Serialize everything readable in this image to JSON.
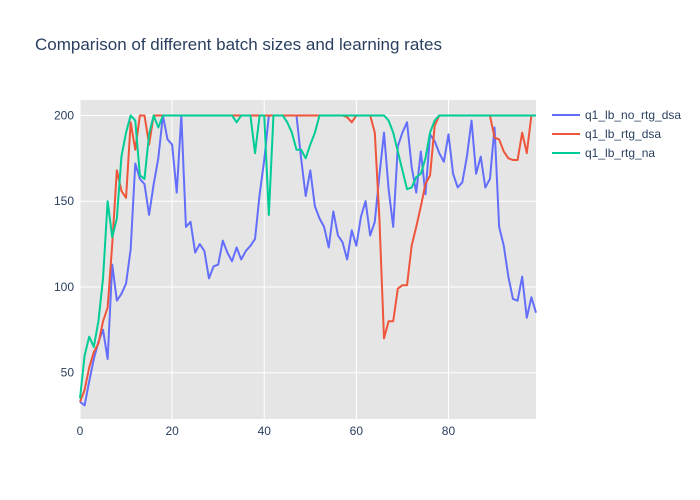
{
  "chart_data": {
    "type": "line",
    "title": "Comparison of different batch sizes and learning rates",
    "xlabel": "",
    "ylabel": "",
    "xlim": [
      0,
      99
    ],
    "ylim": [
      23,
      209
    ],
    "x_ticks": [
      0,
      20,
      40,
      60,
      80
    ],
    "y_ticks": [
      50,
      100,
      150,
      200
    ],
    "grid": true,
    "legend_position": "right",
    "plot_background": "#e5e5e5",
    "series": [
      {
        "name": "q1_lb_no_rtg_dsa",
        "color": "#636efa",
        "points": [
          [
            0,
            33
          ],
          [
            1,
            31
          ],
          [
            2,
            45
          ],
          [
            3,
            58
          ],
          [
            4,
            68
          ],
          [
            5,
            75
          ],
          [
            6,
            58
          ],
          [
            7,
            113
          ],
          [
            8,
            92
          ],
          [
            9,
            96
          ],
          [
            10,
            102
          ],
          [
            11,
            122
          ],
          [
            12,
            172
          ],
          [
            13,
            163
          ],
          [
            14,
            160
          ],
          [
            15,
            142
          ],
          [
            16,
            160
          ],
          [
            17,
            175
          ],
          [
            18,
            200
          ],
          [
            19,
            186
          ],
          [
            20,
            183
          ],
          [
            21,
            155
          ],
          [
            22,
            200
          ],
          [
            23,
            135
          ],
          [
            24,
            138
          ],
          [
            25,
            120
          ],
          [
            26,
            125
          ],
          [
            27,
            121
          ],
          [
            28,
            105
          ],
          [
            29,
            112
          ],
          [
            30,
            113
          ],
          [
            31,
            127
          ],
          [
            32,
            120
          ],
          [
            33,
            115
          ],
          [
            34,
            123
          ],
          [
            35,
            116
          ],
          [
            36,
            121
          ],
          [
            37,
            124
          ],
          [
            38,
            128
          ],
          [
            39,
            154
          ],
          [
            40,
            174
          ],
          [
            41,
            200
          ],
          [
            42,
            200
          ],
          [
            43,
            200
          ],
          [
            44,
            200
          ],
          [
            45,
            200
          ],
          [
            46,
            200
          ],
          [
            47,
            200
          ],
          [
            48,
            175
          ],
          [
            49,
            153
          ],
          [
            50,
            168
          ],
          [
            51,
            147
          ],
          [
            52,
            140
          ],
          [
            53,
            135
          ],
          [
            54,
            123
          ],
          [
            55,
            144
          ],
          [
            56,
            130
          ],
          [
            57,
            126
          ],
          [
            58,
            116
          ],
          [
            59,
            133
          ],
          [
            60,
            124
          ],
          [
            61,
            141
          ],
          [
            62,
            150
          ],
          [
            63,
            130
          ],
          [
            64,
            138
          ],
          [
            65,
            165
          ],
          [
            66,
            190
          ],
          [
            67,
            157
          ],
          [
            68,
            135
          ],
          [
            69,
            182
          ],
          [
            70,
            190
          ],
          [
            71,
            196
          ],
          [
            72,
            170
          ],
          [
            73,
            155
          ],
          [
            74,
            179
          ],
          [
            75,
            154
          ],
          [
            76,
            189
          ],
          [
            77,
            185
          ],
          [
            78,
            178
          ],
          [
            79,
            173
          ],
          [
            80,
            189
          ],
          [
            81,
            166
          ],
          [
            82,
            158
          ],
          [
            83,
            161
          ],
          [
            84,
            176
          ],
          [
            85,
            197
          ],
          [
            86,
            166
          ],
          [
            87,
            176
          ],
          [
            88,
            158
          ],
          [
            89,
            163
          ],
          [
            90,
            193
          ],
          [
            91,
            135
          ],
          [
            92,
            124
          ],
          [
            93,
            106
          ],
          [
            94,
            93
          ],
          [
            95,
            92
          ],
          [
            96,
            106
          ],
          [
            97,
            82
          ],
          [
            98,
            94
          ],
          [
            99,
            85
          ]
        ]
      },
      {
        "name": "q1_lb_rtg_dsa",
        "color": "#ef553b",
        "points": [
          [
            0,
            33
          ],
          [
            1,
            40
          ],
          [
            2,
            53
          ],
          [
            3,
            62
          ],
          [
            4,
            67
          ],
          [
            5,
            80
          ],
          [
            6,
            88
          ],
          [
            7,
            125
          ],
          [
            8,
            168
          ],
          [
            9,
            156
          ],
          [
            10,
            152
          ],
          [
            11,
            196
          ],
          [
            12,
            180
          ],
          [
            13,
            200
          ],
          [
            14,
            200
          ],
          [
            15,
            183
          ],
          [
            16,
            200
          ],
          [
            17,
            200
          ],
          [
            18,
            200
          ],
          [
            19,
            200
          ],
          [
            20,
            200
          ],
          [
            21,
            200
          ],
          [
            22,
            200
          ],
          [
            23,
            200
          ],
          [
            24,
            200
          ],
          [
            25,
            200
          ],
          [
            26,
            200
          ],
          [
            27,
            200
          ],
          [
            28,
            200
          ],
          [
            29,
            200
          ],
          [
            30,
            200
          ],
          [
            31,
            200
          ],
          [
            32,
            200
          ],
          [
            33,
            200
          ],
          [
            34,
            200
          ],
          [
            35,
            200
          ],
          [
            36,
            200
          ],
          [
            37,
            200
          ],
          [
            38,
            200
          ],
          [
            39,
            200
          ],
          [
            40,
            200
          ],
          [
            41,
            200
          ],
          [
            42,
            200
          ],
          [
            43,
            200
          ],
          [
            44,
            200
          ],
          [
            45,
            200
          ],
          [
            46,
            200
          ],
          [
            47,
            200
          ],
          [
            48,
            200
          ],
          [
            49,
            200
          ],
          [
            50,
            200
          ],
          [
            51,
            200
          ],
          [
            52,
            200
          ],
          [
            53,
            200
          ],
          [
            54,
            200
          ],
          [
            55,
            200
          ],
          [
            56,
            200
          ],
          [
            57,
            200
          ],
          [
            58,
            199
          ],
          [
            59,
            196
          ],
          [
            60,
            200
          ],
          [
            61,
            200
          ],
          [
            62,
            200
          ],
          [
            63,
            200
          ],
          [
            64,
            190
          ],
          [
            65,
            140
          ],
          [
            66,
            70
          ],
          [
            67,
            80
          ],
          [
            68,
            80
          ],
          [
            69,
            99
          ],
          [
            70,
            101
          ],
          [
            71,
            101
          ],
          [
            72,
            124
          ],
          [
            73,
            135
          ],
          [
            74,
            147
          ],
          [
            75,
            160
          ],
          [
            76,
            165
          ],
          [
            77,
            194
          ],
          [
            78,
            200
          ],
          [
            79,
            200
          ],
          [
            80,
            200
          ],
          [
            81,
            200
          ],
          [
            82,
            200
          ],
          [
            83,
            200
          ],
          [
            84,
            200
          ],
          [
            85,
            200
          ],
          [
            86,
            200
          ],
          [
            87,
            200
          ],
          [
            88,
            200
          ],
          [
            89,
            200
          ],
          [
            90,
            187
          ],
          [
            91,
            186
          ],
          [
            92,
            179
          ],
          [
            93,
            175
          ],
          [
            94,
            174
          ],
          [
            95,
            174
          ],
          [
            96,
            190
          ],
          [
            97,
            178
          ],
          [
            98,
            200
          ],
          [
            99,
            200
          ]
        ]
      },
      {
        "name": "q1_lb_rtg_na",
        "color": "#00cc96",
        "points": [
          [
            0,
            35
          ],
          [
            1,
            60
          ],
          [
            2,
            71
          ],
          [
            3,
            65
          ],
          [
            4,
            80
          ],
          [
            5,
            105
          ],
          [
            6,
            150
          ],
          [
            7,
            129
          ],
          [
            8,
            140
          ],
          [
            9,
            176
          ],
          [
            10,
            190
          ],
          [
            11,
            200
          ],
          [
            12,
            197
          ],
          [
            13,
            165
          ],
          [
            14,
            163
          ],
          [
            15,
            189
          ],
          [
            16,
            200
          ],
          [
            17,
            193
          ],
          [
            18,
            200
          ],
          [
            19,
            200
          ],
          [
            20,
            200
          ],
          [
            21,
            200
          ],
          [
            22,
            200
          ],
          [
            23,
            200
          ],
          [
            24,
            200
          ],
          [
            25,
            200
          ],
          [
            26,
            200
          ],
          [
            27,
            200
          ],
          [
            28,
            200
          ],
          [
            29,
            200
          ],
          [
            30,
            200
          ],
          [
            31,
            200
          ],
          [
            32,
            200
          ],
          [
            33,
            200
          ],
          [
            34,
            196
          ],
          [
            35,
            200
          ],
          [
            36,
            200
          ],
          [
            37,
            200
          ],
          [
            38,
            178
          ],
          [
            39,
            200
          ],
          [
            40,
            200
          ],
          [
            41,
            142
          ],
          [
            42,
            200
          ],
          [
            43,
            200
          ],
          [
            44,
            200
          ],
          [
            45,
            196
          ],
          [
            46,
            190
          ],
          [
            47,
            180
          ],
          [
            48,
            180
          ],
          [
            49,
            175
          ],
          [
            50,
            183
          ],
          [
            51,
            190
          ],
          [
            52,
            200
          ],
          [
            53,
            200
          ],
          [
            54,
            200
          ],
          [
            55,
            200
          ],
          [
            56,
            200
          ],
          [
            57,
            200
          ],
          [
            58,
            200
          ],
          [
            59,
            200
          ],
          [
            60,
            200
          ],
          [
            61,
            200
          ],
          [
            62,
            200
          ],
          [
            63,
            200
          ],
          [
            64,
            200
          ],
          [
            65,
            200
          ],
          [
            66,
            200
          ],
          [
            67,
            197
          ],
          [
            68,
            190
          ],
          [
            69,
            179
          ],
          [
            70,
            168
          ],
          [
            71,
            157
          ],
          [
            72,
            158
          ],
          [
            73,
            164
          ],
          [
            74,
            166
          ],
          [
            75,
            175
          ],
          [
            76,
            190
          ],
          [
            77,
            197
          ],
          [
            78,
            200
          ],
          [
            79,
            200
          ],
          [
            80,
            200
          ],
          [
            81,
            200
          ],
          [
            82,
            200
          ],
          [
            83,
            200
          ],
          [
            84,
            200
          ],
          [
            85,
            200
          ],
          [
            86,
            200
          ],
          [
            87,
            200
          ],
          [
            88,
            200
          ],
          [
            89,
            200
          ],
          [
            90,
            200
          ],
          [
            91,
            200
          ],
          [
            92,
            200
          ],
          [
            93,
            200
          ],
          [
            94,
            200
          ],
          [
            95,
            200
          ],
          [
            96,
            200
          ],
          [
            97,
            200
          ],
          [
            98,
            200
          ],
          [
            99,
            200
          ]
        ]
      }
    ]
  }
}
